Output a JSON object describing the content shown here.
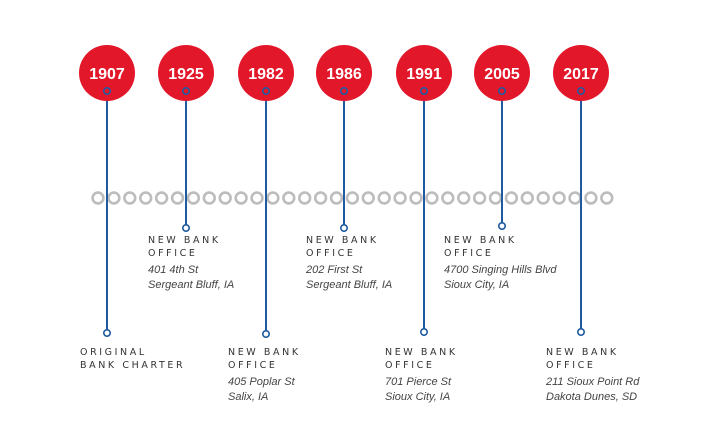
{
  "colors": {
    "badge": "#e3172a",
    "line": "#1f5aa0",
    "dot": "#bdbdbd"
  },
  "milestones": [
    {
      "year": "1907",
      "title": [
        "ORIGINAL",
        "BANK CHARTER"
      ],
      "address": []
    },
    {
      "year": "1925",
      "title": [
        "NEW BANK",
        "OFFICE"
      ],
      "address": [
        "401 4th St",
        "Sergeant Bluff, IA"
      ]
    },
    {
      "year": "1982",
      "title": [
        "NEW BANK",
        "OFFICE"
      ],
      "address": [
        "405 Poplar St",
        "Salix, IA"
      ]
    },
    {
      "year": "1986",
      "title": [
        "NEW BANK",
        "OFFICE"
      ],
      "address": [
        "202 First St",
        "Sergeant Bluff, IA"
      ]
    },
    {
      "year": "1991",
      "title": [
        "NEW BANK",
        "OFFICE"
      ],
      "address": [
        "701 Pierce St",
        "Sioux City, IA"
      ]
    },
    {
      "year": "2005",
      "title": [
        "NEW BANK",
        "OFFICE"
      ],
      "address": [
        "4700 Singing Hills Blvd",
        "Sioux City, IA"
      ]
    },
    {
      "year": "2017",
      "title": [
        "NEW BANK",
        "OFFICE"
      ],
      "address": [
        "211 Sioux Point Rd",
        "Dakota Dunes, SD"
      ]
    }
  ]
}
